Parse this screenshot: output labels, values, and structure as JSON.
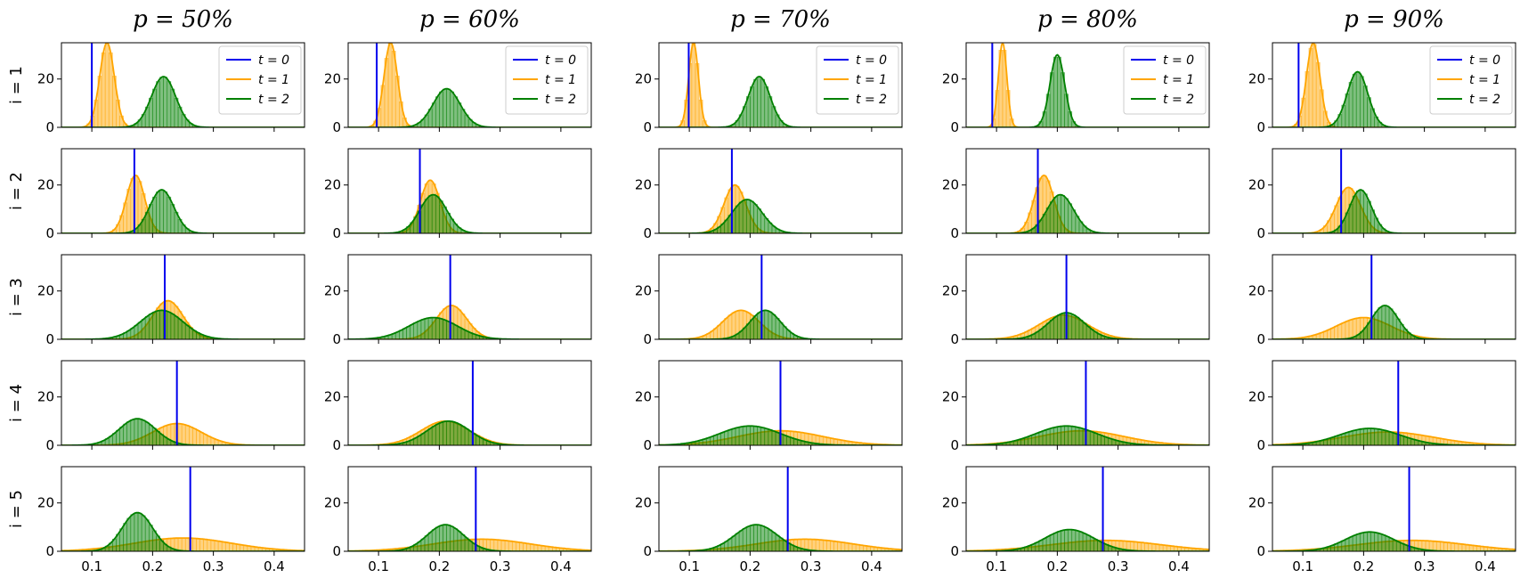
{
  "chart_data": {
    "type": "histogram-grid",
    "column_titles": [
      "p = 50%",
      "p = 60%",
      "p = 70%",
      "p = 80%",
      "p = 90%"
    ],
    "row_labels": [
      "i = 1",
      "i = 2",
      "i = 3",
      "i = 4",
      "i = 5"
    ],
    "x_ticks": [
      0.1,
      0.2,
      0.3,
      0.4
    ],
    "x_tick_labels": [
      "0.1",
      "0.2",
      "0.3",
      "0.4"
    ],
    "y_ticks": [
      0,
      20
    ],
    "y_tick_labels": [
      "0",
      "20"
    ],
    "xlim": [
      0.05,
      0.45
    ],
    "ylim": [
      0,
      35
    ],
    "legend": {
      "placement": "top-right",
      "row": 0,
      "entries": [
        "t = 0",
        "t = 1",
        "t = 2"
      ]
    },
    "series": [
      {
        "name": "t = 0",
        "kind": "vline",
        "color": "#0000ee"
      },
      {
        "name": "t = 1",
        "kind": "hist+kde",
        "color": "#ffa500"
      },
      {
        "name": "t = 2",
        "kind": "hist+kde",
        "color": "#008000"
      }
    ],
    "panels": [
      [
        {
          "t0": 0.1,
          "t1": {
            "mean": 0.125,
            "sd": 0.012,
            "peak": 35
          },
          "t2": {
            "mean": 0.218,
            "sd": 0.02,
            "peak": 21
          }
        },
        {
          "t0": 0.097,
          "t1": {
            "mean": 0.12,
            "sd": 0.011,
            "peak": 35
          },
          "t2": {
            "mean": 0.212,
            "sd": 0.022,
            "peak": 16
          }
        },
        {
          "t0": 0.099,
          "t1": {
            "mean": 0.107,
            "sd": 0.008,
            "peak": 35
          },
          "t2": {
            "mean": 0.215,
            "sd": 0.018,
            "peak": 21
          }
        },
        {
          "t0": 0.093,
          "t1": {
            "mean": 0.11,
            "sd": 0.007,
            "peak": 35
          },
          "t2": {
            "mean": 0.2,
            "sd": 0.012,
            "peak": 30
          }
        },
        {
          "t0": 0.093,
          "t1": {
            "mean": 0.117,
            "sd": 0.011,
            "peak": 35
          },
          "t2": {
            "mean": 0.19,
            "sd": 0.017,
            "peak": 23
          }
        }
      ],
      [
        {
          "t0": 0.17,
          "t1": {
            "mean": 0.172,
            "sd": 0.015,
            "peak": 24
          },
          "t2": {
            "mean": 0.215,
            "sd": 0.02,
            "peak": 18
          }
        },
        {
          "t0": 0.168,
          "t1": {
            "mean": 0.185,
            "sd": 0.016,
            "peak": 22
          },
          "t2": {
            "mean": 0.19,
            "sd": 0.022,
            "peak": 16
          }
        },
        {
          "t0": 0.17,
          "t1": {
            "mean": 0.175,
            "sd": 0.018,
            "peak": 20
          },
          "t2": {
            "mean": 0.195,
            "sd": 0.025,
            "peak": 14
          }
        },
        {
          "t0": 0.168,
          "t1": {
            "mean": 0.178,
            "sd": 0.016,
            "peak": 24
          },
          "t2": {
            "mean": 0.205,
            "sd": 0.022,
            "peak": 16
          }
        },
        {
          "t0": 0.163,
          "t1": {
            "mean": 0.175,
            "sd": 0.02,
            "peak": 19
          },
          "t2": {
            "mean": 0.195,
            "sd": 0.018,
            "peak": 18
          }
        }
      ],
      [
        {
          "t0": 0.22,
          "t1": {
            "mean": 0.225,
            "sd": 0.025,
            "peak": 16
          },
          "t2": {
            "mean": 0.215,
            "sd": 0.035,
            "peak": 12
          }
        },
        {
          "t0": 0.218,
          "t1": {
            "mean": 0.22,
            "sd": 0.025,
            "peak": 14
          },
          "t2": {
            "mean": 0.19,
            "sd": 0.04,
            "peak": 9
          }
        },
        {
          "t0": 0.219,
          "t1": {
            "mean": 0.185,
            "sd": 0.03,
            "peak": 12
          },
          "t2": {
            "mean": 0.225,
            "sd": 0.025,
            "peak": 12
          }
        },
        {
          "t0": 0.215,
          "t1": {
            "mean": 0.21,
            "sd": 0.04,
            "peak": 10
          },
          "t2": {
            "mean": 0.215,
            "sd": 0.03,
            "peak": 11
          }
        },
        {
          "t0": 0.213,
          "t1": {
            "mean": 0.2,
            "sd": 0.045,
            "peak": 9
          },
          "t2": {
            "mean": 0.235,
            "sd": 0.022,
            "peak": 14
          }
        }
      ],
      [
        {
          "t0": 0.24,
          "t1": {
            "mean": 0.24,
            "sd": 0.04,
            "peak": 9
          },
          "t2": {
            "mean": 0.175,
            "sd": 0.03,
            "peak": 11
          }
        },
        {
          "t0": 0.255,
          "t1": {
            "mean": 0.21,
            "sd": 0.04,
            "peak": 10
          },
          "t2": {
            "mean": 0.215,
            "sd": 0.035,
            "peak": 10
          }
        },
        {
          "t0": 0.25,
          "t1": {
            "mean": 0.25,
            "sd": 0.07,
            "peak": 6
          },
          "t2": {
            "mean": 0.2,
            "sd": 0.05,
            "peak": 8
          }
        },
        {
          "t0": 0.247,
          "t1": {
            "mean": 0.24,
            "sd": 0.07,
            "peak": 6
          },
          "t2": {
            "mean": 0.215,
            "sd": 0.05,
            "peak": 8
          }
        },
        {
          "t0": 0.257,
          "t1": {
            "mean": 0.24,
            "sd": 0.075,
            "peak": 5.5
          },
          "t2": {
            "mean": 0.21,
            "sd": 0.05,
            "peak": 7
          }
        }
      ],
      [
        {
          "t0": 0.262,
          "t1": {
            "mean": 0.25,
            "sd": 0.08,
            "peak": 5.5
          },
          "t2": {
            "mean": 0.175,
            "sd": 0.025,
            "peak": 16
          }
        },
        {
          "t0": 0.26,
          "t1": {
            "mean": 0.27,
            "sd": 0.08,
            "peak": 5
          },
          "t2": {
            "mean": 0.21,
            "sd": 0.03,
            "peak": 11
          }
        },
        {
          "t0": 0.262,
          "t1": {
            "mean": 0.29,
            "sd": 0.08,
            "peak": 5
          },
          "t2": {
            "mean": 0.21,
            "sd": 0.035,
            "peak": 11
          }
        },
        {
          "t0": 0.275,
          "t1": {
            "mean": 0.28,
            "sd": 0.09,
            "peak": 4.5
          },
          "t2": {
            "mean": 0.22,
            "sd": 0.04,
            "peak": 9
          }
        },
        {
          "t0": 0.275,
          "t1": {
            "mean": 0.28,
            "sd": 0.09,
            "peak": 4.5
          },
          "t2": {
            "mean": 0.21,
            "sd": 0.04,
            "peak": 8
          }
        }
      ]
    ]
  }
}
